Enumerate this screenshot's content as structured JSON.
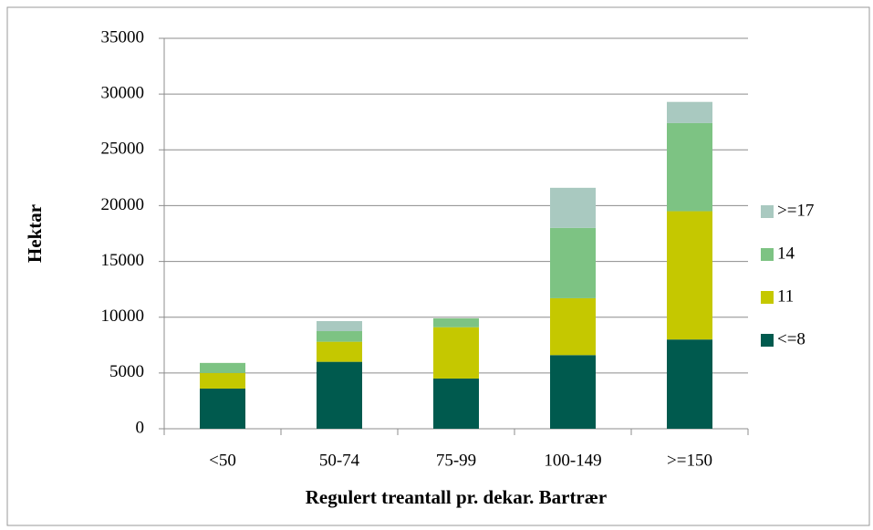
{
  "chart_data": {
    "type": "stacked_bar",
    "x_label": "Regulert treantall pr. dekar. Bartrær",
    "y_label": "Hektar",
    "categories": [
      "<50",
      "50-74",
      "75-99",
      "100-149",
      ">=150"
    ],
    "series": [
      {
        "name": "<=8",
        "color": "#005a4e",
        "values": [
          3600,
          6000,
          4500,
          6600,
          8000
        ]
      },
      {
        "name": "11",
        "color": "#c5c800",
        "values": [
          1400,
          1800,
          4600,
          5100,
          11500
        ]
      },
      {
        "name": "14",
        "color": "#7dc383",
        "values": [
          900,
          950,
          800,
          6300,
          7900
        ]
      },
      {
        "name": ">=17",
        "color": "#a9c9c0",
        "values": [
          0,
          900,
          0,
          3600,
          1900
        ]
      }
    ],
    "ylim": [
      0,
      35000
    ],
    "yticks": [
      0,
      5000,
      10000,
      15000,
      20000,
      25000,
      30000,
      35000
    ],
    "grid": true,
    "legend": "right"
  }
}
